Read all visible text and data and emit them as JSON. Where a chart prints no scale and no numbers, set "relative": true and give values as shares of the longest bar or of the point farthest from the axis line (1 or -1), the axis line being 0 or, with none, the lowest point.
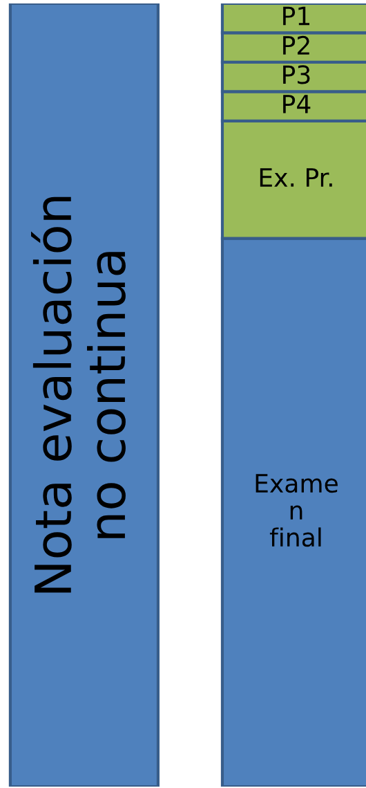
{
  "chart_data": {
    "type": "bar",
    "relative": true,
    "stacked": true,
    "categories": [
      null,
      null
    ],
    "series": [
      {
        "name": "Nota evaluación no continua",
        "color": "#4f81bd",
        "values": [
          1,
          null
        ]
      },
      {
        "name": "Examen final",
        "color": "#4f81bd",
        "values": [
          null,
          0.7
        ]
      },
      {
        "name": "Ex. Pr.",
        "color": "#9bbb59",
        "values": [
          null,
          0.15
        ]
      },
      {
        "name": "P4",
        "color": "#9bbb59",
        "values": [
          null,
          0.0375
        ]
      },
      {
        "name": "P3",
        "color": "#9bbb59",
        "values": [
          null,
          0.0375
        ]
      },
      {
        "name": "P2",
        "color": "#9bbb59",
        "values": [
          null,
          0.0375
        ]
      },
      {
        "name": "P1",
        "color": "#9bbb59",
        "values": [
          null,
          0.0375
        ]
      }
    ]
  }
}
